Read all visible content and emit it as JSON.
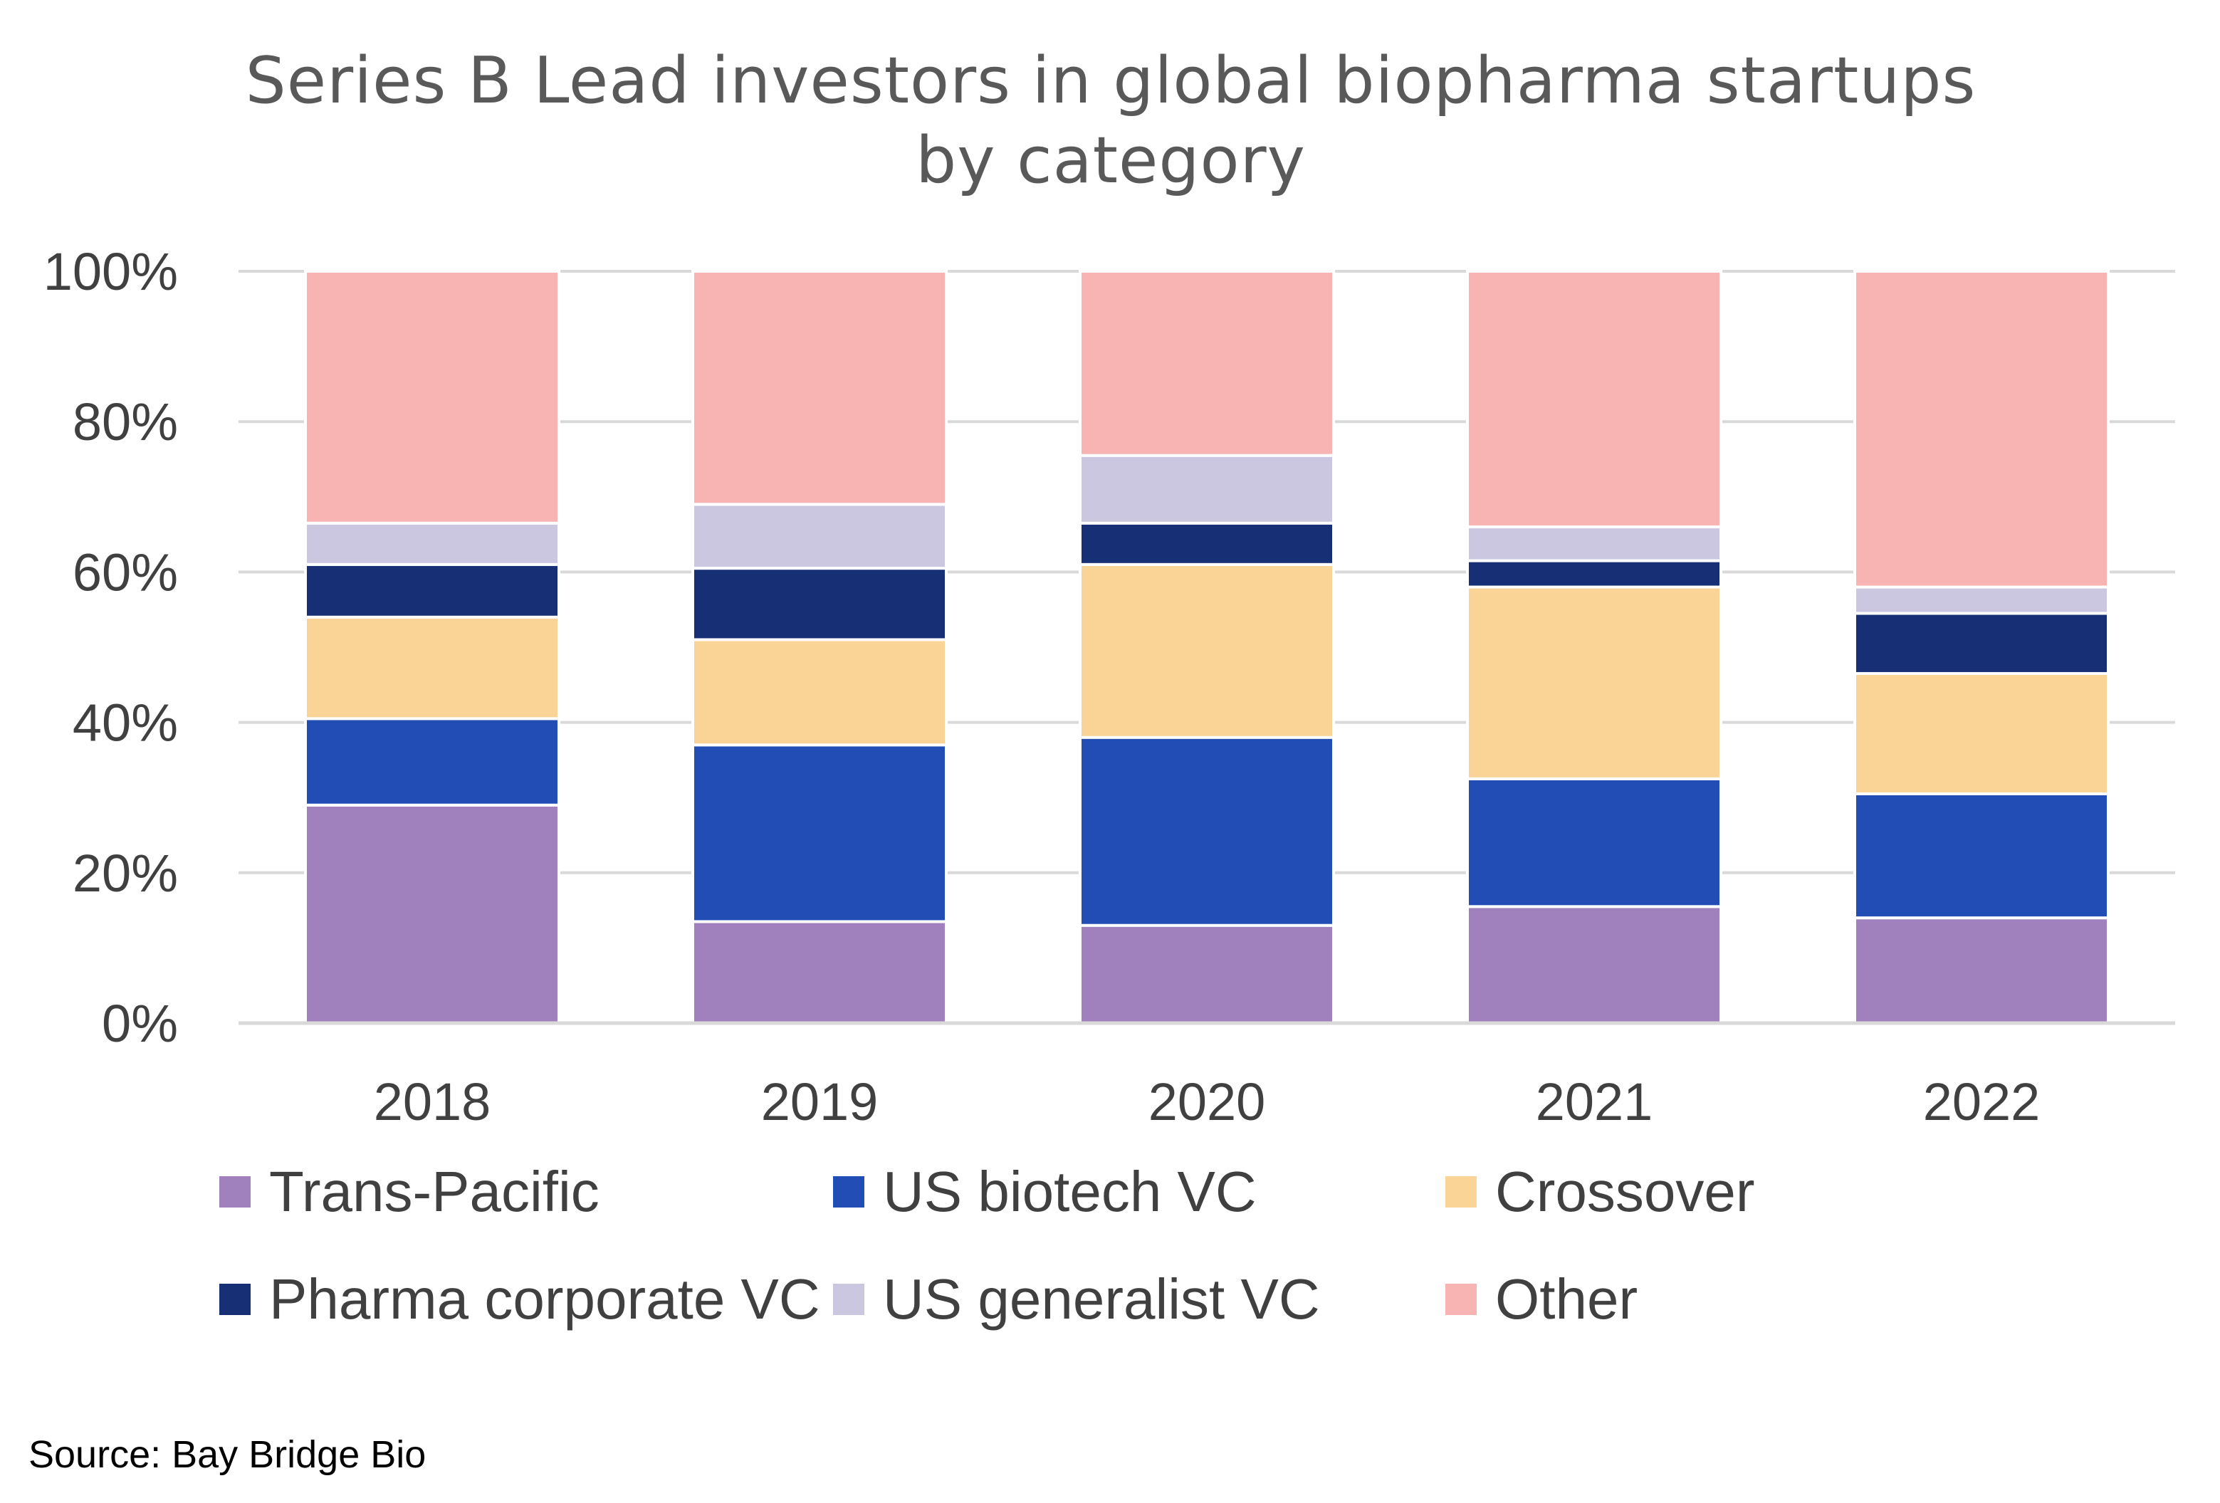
{
  "chart_data": {
    "type": "bar",
    "stacked": true,
    "title": "Series B Lead investors in global biopharma startups by category",
    "xlabel": "",
    "ylabel": "",
    "categories": [
      "2018",
      "2019",
      "2020",
      "2021",
      "2022"
    ],
    "ylim": [
      0,
      100
    ],
    "yticks": [
      "0%",
      "20%",
      "40%",
      "60%",
      "80%",
      "100%"
    ],
    "grid": true,
    "legend_position": "bottom",
    "series": [
      {
        "name": "Trans-Pacific",
        "color": "#A181BD",
        "values": [
          29,
          13.5,
          13,
          15.5,
          14
        ]
      },
      {
        "name": "US biotech VC",
        "color": "#214DB4",
        "values": [
          11.5,
          23.5,
          25,
          17,
          16.5
        ]
      },
      {
        "name": "Crossover",
        "color": "#F9D496",
        "values": [
          13.5,
          14,
          23,
          25.5,
          16
        ]
      },
      {
        "name": "Pharma corporate VC",
        "color": "#172F74",
        "values": [
          7,
          9.5,
          5.5,
          3.5,
          8
        ]
      },
      {
        "name": "US generalist VC",
        "color": "#CCC7E0",
        "values": [
          5.5,
          8.5,
          9,
          4.5,
          3.5
        ]
      },
      {
        "name": "Other",
        "color": "#F8B3B3",
        "values": [
          33.5,
          31,
          24.5,
          34,
          42
        ]
      }
    ]
  },
  "source": "Source: Bay Bridge Bio"
}
